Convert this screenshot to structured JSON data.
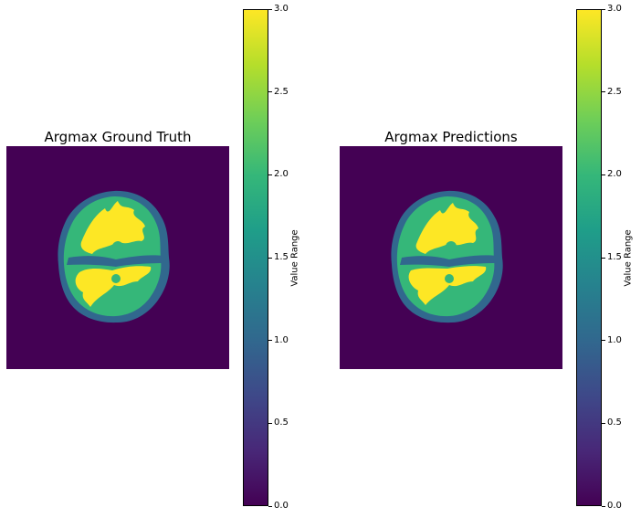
{
  "chart_data": [
    {
      "type": "heatmap",
      "title": "Argmax Ground Truth",
      "colormap": "viridis",
      "value_range": [
        0,
        3
      ],
      "classes": [
        0,
        1,
        2,
        3
      ],
      "colorbar": {
        "label": "Value Range",
        "ticks": [
          "0.0",
          "0.5",
          "1.0",
          "1.5",
          "2.0",
          "2.5",
          "3.0"
        ]
      },
      "axes_visible": false
    },
    {
      "type": "heatmap",
      "title": "Argmax Predictions",
      "colormap": "viridis",
      "value_range": [
        0,
        3
      ],
      "classes": [
        0,
        1,
        2,
        3
      ],
      "colorbar": {
        "label": "Value Range",
        "ticks": [
          "0.0",
          "0.5",
          "1.0",
          "1.5",
          "2.0",
          "2.5",
          "3.0"
        ]
      },
      "axes_visible": false
    }
  ],
  "colors": {
    "class_0": "#440154",
    "class_1": "#31688e",
    "class_2": "#35b779",
    "class_3": "#fde725"
  }
}
